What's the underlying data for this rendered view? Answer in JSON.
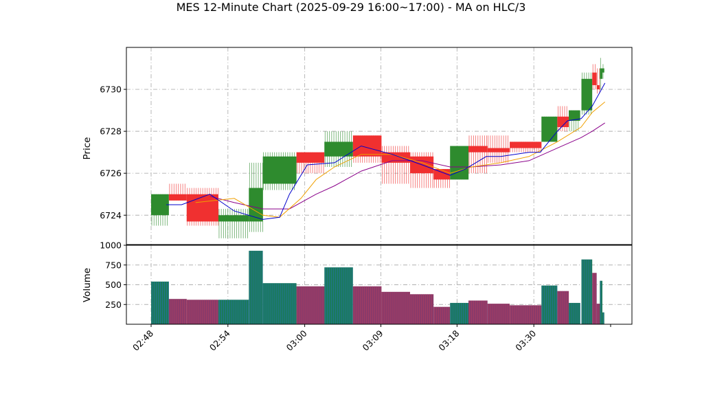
{
  "chart_data": {
    "title": "MES 12-Minute Chart (2025-09-29 16:00~17:00) - MA on HLC/3",
    "type": "candlestick",
    "price_panel": {
      "ylabel": "Price",
      "ylim": [
        6722.6,
        6732.0
      ],
      "yticks": [
        6724,
        6726,
        6728,
        6730
      ],
      "grid": true
    },
    "volume_panel": {
      "ylabel": "Volume",
      "ylim": [
        0,
        1000
      ],
      "yticks": [
        250,
        500,
        750,
        1000
      ],
      "grid": true
    },
    "x_ticks": [
      "02:48",
      "02:54",
      "03:00",
      "03:09",
      "03:18",
      "03:30"
    ],
    "colors": {
      "up": "#2e8b2e",
      "down": "#f03030",
      "ma_fast": "#0000cc",
      "ma_mid": "#f0a000",
      "ma_slow": "#8a008a",
      "volume_up": "#1a7a5a",
      "volume_down": "#8a3a6a",
      "grid": "#b0b0b0"
    },
    "candles": [
      {
        "open": 6724.0,
        "high": 6725.0,
        "low": 6723.5,
        "close": 6725.0,
        "volume": 540
      },
      {
        "open": 6725.0,
        "high": 6725.5,
        "low": 6724.7,
        "close": 6724.7,
        "volume": 320
      },
      {
        "open": 6725.0,
        "high": 6725.3,
        "low": 6723.5,
        "close": 6723.7,
        "volume": 310
      },
      {
        "open": 6723.7,
        "high": 6724.3,
        "low": 6722.9,
        "close": 6724.0,
        "volume": 310
      },
      {
        "open": 6723.7,
        "high": 6726.5,
        "low": 6723.2,
        "close": 6725.3,
        "volume": 930
      },
      {
        "open": 6725.5,
        "high": 6727.0,
        "low": 6725.2,
        "close": 6726.8,
        "volume": 520
      },
      {
        "open": 6727.0,
        "high": 6727.0,
        "low": 6726.0,
        "close": 6726.5,
        "volume": 480
      },
      {
        "open": 6726.8,
        "high": 6728.0,
        "low": 6726.3,
        "close": 6727.5,
        "volume": 720
      },
      {
        "open": 6727.8,
        "high": 6727.8,
        "low": 6726.5,
        "close": 6726.8,
        "volume": 480
      },
      {
        "open": 6727.0,
        "high": 6727.3,
        "low": 6725.5,
        "close": 6726.5,
        "volume": 410
      },
      {
        "open": 6726.8,
        "high": 6727.0,
        "low": 6725.3,
        "close": 6726.0,
        "volume": 380
      },
      {
        "open": 6726.2,
        "high": 6726.2,
        "low": 6725.3,
        "close": 6725.7,
        "volume": 220
      },
      {
        "open": 6725.7,
        "high": 6727.3,
        "low": 6725.7,
        "close": 6727.3,
        "volume": 270
      },
      {
        "open": 6727.3,
        "high": 6727.8,
        "low": 6726.0,
        "close": 6727.0,
        "volume": 300
      },
      {
        "open": 6727.2,
        "high": 6727.8,
        "low": 6726.5,
        "close": 6727.0,
        "volume": 260
      },
      {
        "open": 6727.5,
        "high": 6727.5,
        "low": 6727.0,
        "close": 6727.2,
        "volume": 240
      },
      {
        "open": 6727.5,
        "high": 6728.7,
        "low": 6727.5,
        "close": 6728.7,
        "volume": 490
      },
      {
        "open": 6728.7,
        "high": 6729.2,
        "low": 6728.0,
        "close": 6728.2,
        "volume": 420
      },
      {
        "open": 6728.5,
        "high": 6729.0,
        "low": 6728.0,
        "close": 6729.0,
        "volume": 270
      },
      {
        "open": 6729.0,
        "high": 6730.8,
        "low": 6728.8,
        "close": 6730.5,
        "volume": 820
      },
      {
        "open": 6730.8,
        "high": 6731.2,
        "low": 6730.0,
        "close": 6730.2,
        "volume": 650
      },
      {
        "open": 6730.2,
        "high": 6731.0,
        "low": 6729.8,
        "close": 6730.0,
        "volume": 260
      },
      {
        "open": 6730.5,
        "high": 6731.5,
        "low": 6730.0,
        "close": 6731.0,
        "volume": 550
      },
      {
        "open": 6730.8,
        "high": 6731.2,
        "low": 6730.5,
        "close": 6731.0,
        "volume": 150
      }
    ],
    "ma_fast": [
      {
        "x": 0.48,
        "y": 6724.5
      },
      {
        "x": 0.96,
        "y": 6724.5
      },
      {
        "x": 1.85,
        "y": 6725.0
      },
      {
        "x": 2.62,
        "y": 6724.2
      },
      {
        "x": 3.52,
        "y": 6723.8
      },
      {
        "x": 4.05,
        "y": 6723.9
      },
      {
        "x": 4.36,
        "y": 6725.0
      },
      {
        "x": 4.92,
        "y": 6726.4
      },
      {
        "x": 5.78,
        "y": 6726.5
      },
      {
        "x": 6.62,
        "y": 6727.3
      },
      {
        "x": 7.6,
        "y": 6726.9
      },
      {
        "x": 8.54,
        "y": 6726.4
      },
      {
        "x": 9.42,
        "y": 6725.9
      },
      {
        "x": 9.9,
        "y": 6726.2
      },
      {
        "x": 10.56,
        "y": 6726.8
      },
      {
        "x": 11.02,
        "y": 6726.8
      },
      {
        "x": 11.91,
        "y": 6727.0
      },
      {
        "x": 12.26,
        "y": 6727.0
      },
      {
        "x": 12.8,
        "y": 6728.0
      },
      {
        "x": 13.12,
        "y": 6728.5
      },
      {
        "x": 13.55,
        "y": 6728.6
      },
      {
        "x": 13.9,
        "y": 6729.2
      },
      {
        "x": 14.3,
        "y": 6730.3
      }
    ],
    "ma_mid": [
      {
        "x": 1.4,
        "y": 6724.6
      },
      {
        "x": 2.62,
        "y": 6724.8
      },
      {
        "x": 3.52,
        "y": 6724.0
      },
      {
        "x": 4.05,
        "y": 6723.9
      },
      {
        "x": 4.72,
        "y": 6724.8
      },
      {
        "x": 5.2,
        "y": 6725.7
      },
      {
        "x": 5.78,
        "y": 6726.3
      },
      {
        "x": 6.62,
        "y": 6726.9
      },
      {
        "x": 7.6,
        "y": 6726.9
      },
      {
        "x": 8.54,
        "y": 6726.5
      },
      {
        "x": 9.42,
        "y": 6726.0
      },
      {
        "x": 10.1,
        "y": 6726.3
      },
      {
        "x": 11.02,
        "y": 6726.5
      },
      {
        "x": 11.91,
        "y": 6726.8
      },
      {
        "x": 12.8,
        "y": 6727.5
      },
      {
        "x": 13.55,
        "y": 6728.2
      },
      {
        "x": 13.9,
        "y": 6728.9
      },
      {
        "x": 14.3,
        "y": 6729.4
      }
    ],
    "ma_slow": [
      {
        "x": 1.85,
        "y": 6724.9
      },
      {
        "x": 2.62,
        "y": 6724.6
      },
      {
        "x": 3.52,
        "y": 6724.3
      },
      {
        "x": 4.36,
        "y": 6724.3
      },
      {
        "x": 5.2,
        "y": 6725.0
      },
      {
        "x": 5.78,
        "y": 6725.4
      },
      {
        "x": 6.62,
        "y": 6726.1
      },
      {
        "x": 7.6,
        "y": 6726.6
      },
      {
        "x": 8.54,
        "y": 6726.6
      },
      {
        "x": 9.42,
        "y": 6726.3
      },
      {
        "x": 10.1,
        "y": 6726.3
      },
      {
        "x": 11.02,
        "y": 6726.4
      },
      {
        "x": 11.91,
        "y": 6726.6
      },
      {
        "x": 12.8,
        "y": 6727.2
      },
      {
        "x": 13.55,
        "y": 6727.7
      },
      {
        "x": 13.9,
        "y": 6728.0
      },
      {
        "x": 14.3,
        "y": 6728.4
      }
    ],
    "candle_x": [
      0.0,
      0.56,
      1.12,
      2.12,
      3.08,
      3.52,
      4.58,
      5.46,
      6.36,
      7.26,
      8.16,
      8.9,
      9.42,
      10.0,
      10.6,
      11.3,
      12.3,
      12.8,
      13.16,
      13.56,
      13.9,
      14.04,
      14.14,
      14.22
    ],
    "candle_w": [
      0.56,
      0.56,
      1.0,
      0.96,
      0.44,
      1.06,
      0.88,
      0.9,
      0.9,
      0.9,
      0.74,
      0.52,
      0.58,
      0.6,
      0.7,
      1.0,
      0.5,
      0.36,
      0.36,
      0.34,
      0.14,
      0.1,
      0.08,
      0.06
    ]
  }
}
